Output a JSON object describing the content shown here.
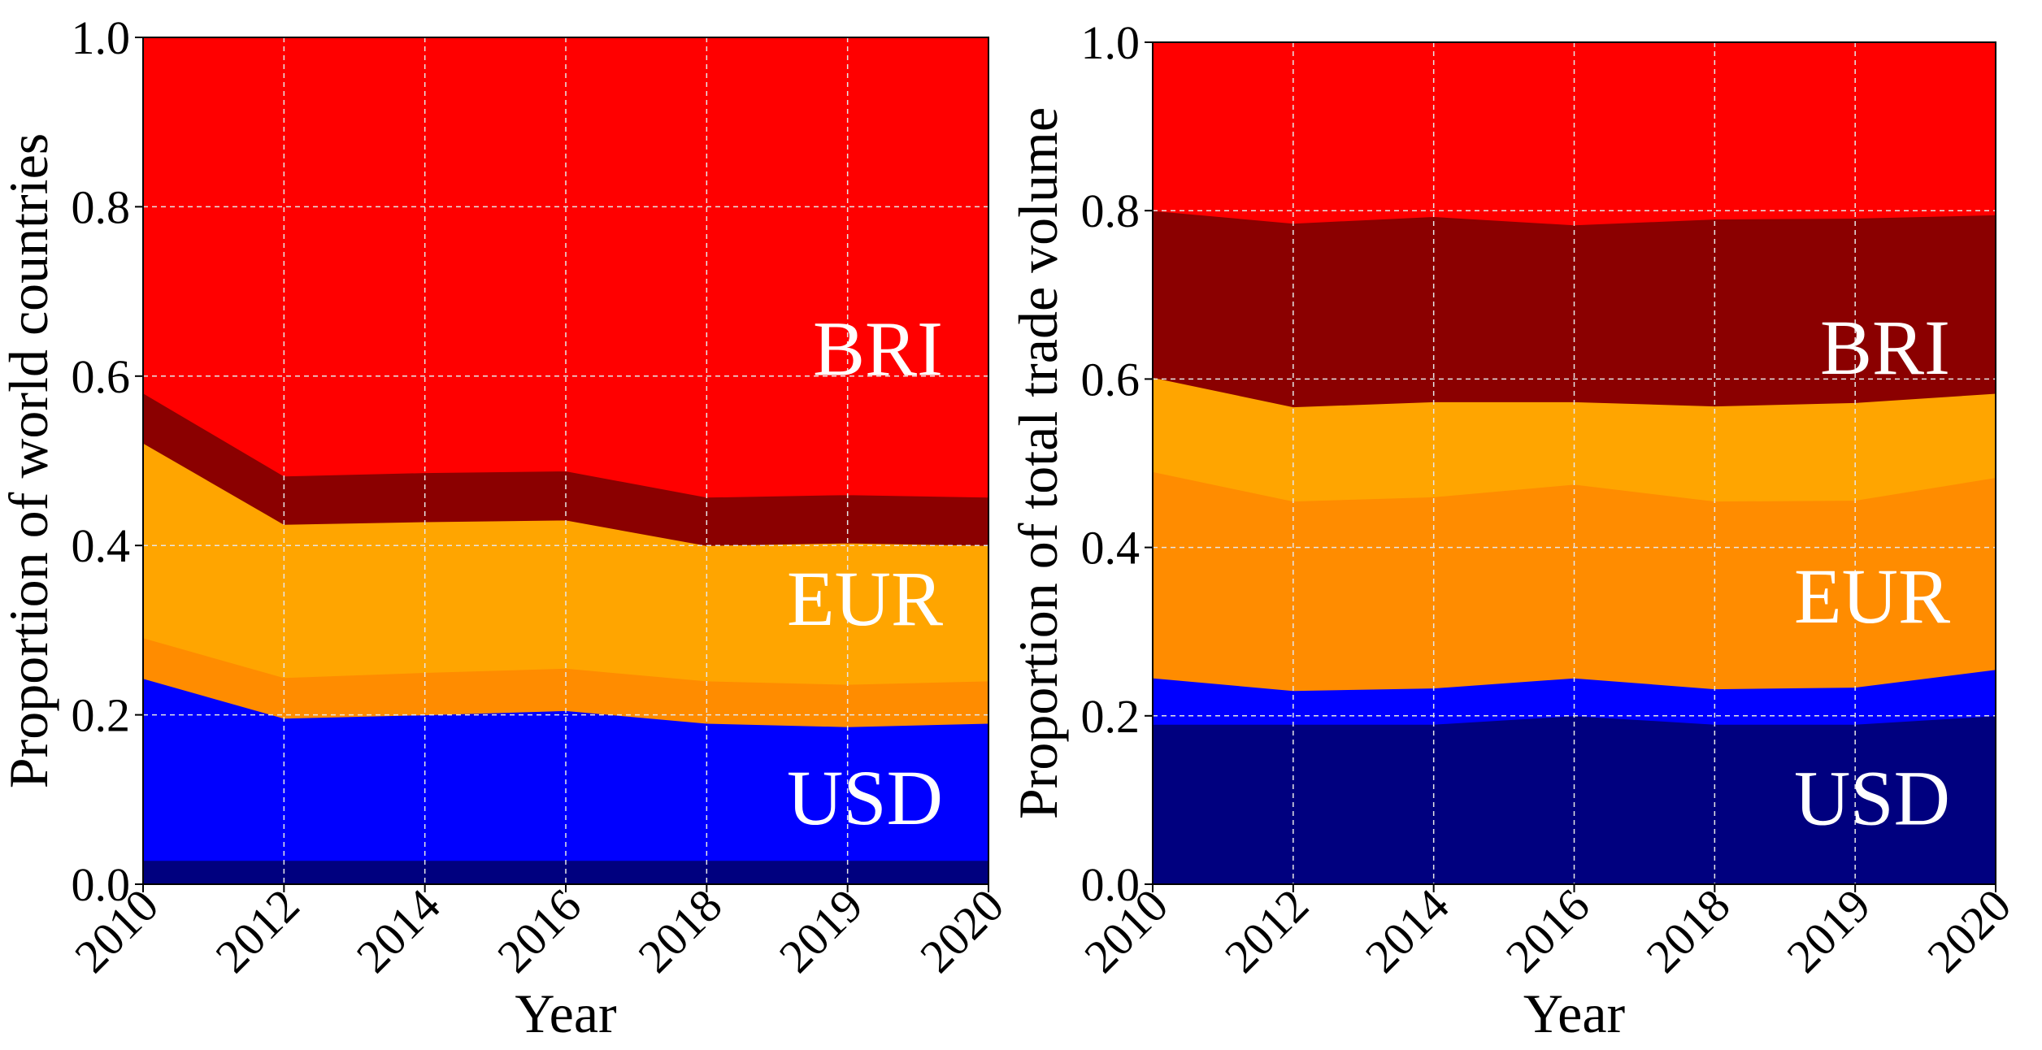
{
  "colors": {
    "background": "#ffffff",
    "grid": "#e6e6e6",
    "label_text": "#ffffff",
    "axis_text": "#000000"
  },
  "chart_data": [
    {
      "type": "area",
      "stacked": true,
      "categories": [
        "2010",
        "2012",
        "2014",
        "2016",
        "2018",
        "2019",
        "2020"
      ],
      "xlabel": "Year",
      "ylabel": "Proportion of world countries",
      "ylim": [
        0.0,
        1.0
      ],
      "yticks": [
        "0.0",
        "0.2",
        "0.4",
        "0.6",
        "0.8",
        "1.0"
      ],
      "grid": true,
      "group_labels": [
        {
          "text": "BRI",
          "y": 0.63
        },
        {
          "text": "EUR",
          "y": 0.335
        },
        {
          "text": "USD",
          "y": 0.1
        }
      ],
      "series": [
        {
          "name": "USD (dark)",
          "color": "#00007f",
          "values": [
            0.028,
            0.028,
            0.028,
            0.028,
            0.028,
            0.028,
            0.028
          ]
        },
        {
          "name": "USD",
          "color": "#0000ff",
          "values": [
            0.215,
            0.168,
            0.172,
            0.177,
            0.162,
            0.158,
            0.162
          ]
        },
        {
          "name": "EUR (dark)",
          "color": "#ff8c00",
          "values": [
            0.048,
            0.048,
            0.05,
            0.05,
            0.05,
            0.05,
            0.05
          ]
        },
        {
          "name": "EUR",
          "color": "#ffa500",
          "values": [
            0.23,
            0.181,
            0.178,
            0.175,
            0.16,
            0.167,
            0.16
          ]
        },
        {
          "name": "BRI (dark)",
          "color": "#8b0000",
          "values": [
            0.059,
            0.057,
            0.058,
            0.058,
            0.057,
            0.057,
            0.057
          ]
        },
        {
          "name": "BRI",
          "color": "#ff0000",
          "values": [
            0.42,
            0.518,
            0.514,
            0.512,
            0.543,
            0.54,
            0.543
          ]
        }
      ]
    },
    {
      "type": "area",
      "stacked": true,
      "categories": [
        "2010",
        "2012",
        "2014",
        "2016",
        "2018",
        "2019",
        "2020"
      ],
      "xlabel": "Year",
      "ylabel": "Proportion of total trade volume",
      "ylim": [
        0.0,
        1.0
      ],
      "yticks": [
        "0.0",
        "0.2",
        "0.4",
        "0.6",
        "0.8",
        "1.0"
      ],
      "grid": true,
      "group_labels": [
        {
          "text": "BRI",
          "y": 0.635
        },
        {
          "text": "EUR",
          "y": 0.34
        },
        {
          "text": "USD",
          "y": 0.1
        }
      ],
      "series": [
        {
          "name": "USD (dark)",
          "color": "#00007f",
          "values": [
            0.19,
            0.19,
            0.19,
            0.2,
            0.19,
            0.19,
            0.2
          ]
        },
        {
          "name": "USD",
          "color": "#0000ff",
          "values": [
            0.055,
            0.04,
            0.043,
            0.045,
            0.042,
            0.044,
            0.055
          ]
        },
        {
          "name": "EUR (dark)",
          "color": "#ff8c00",
          "values": [
            0.245,
            0.225,
            0.227,
            0.23,
            0.223,
            0.222,
            0.228
          ]
        },
        {
          "name": "EUR",
          "color": "#ffa500",
          "values": [
            0.112,
            0.112,
            0.113,
            0.098,
            0.113,
            0.116,
            0.1
          ]
        },
        {
          "name": "BRI (dark)",
          "color": "#8b0000",
          "values": [
            0.198,
            0.218,
            0.22,
            0.21,
            0.222,
            0.219,
            0.212
          ]
        },
        {
          "name": "BRI",
          "color": "#ff0000",
          "values": [
            0.2,
            0.215,
            0.207,
            0.217,
            0.21,
            0.209,
            0.205
          ]
        }
      ]
    }
  ]
}
